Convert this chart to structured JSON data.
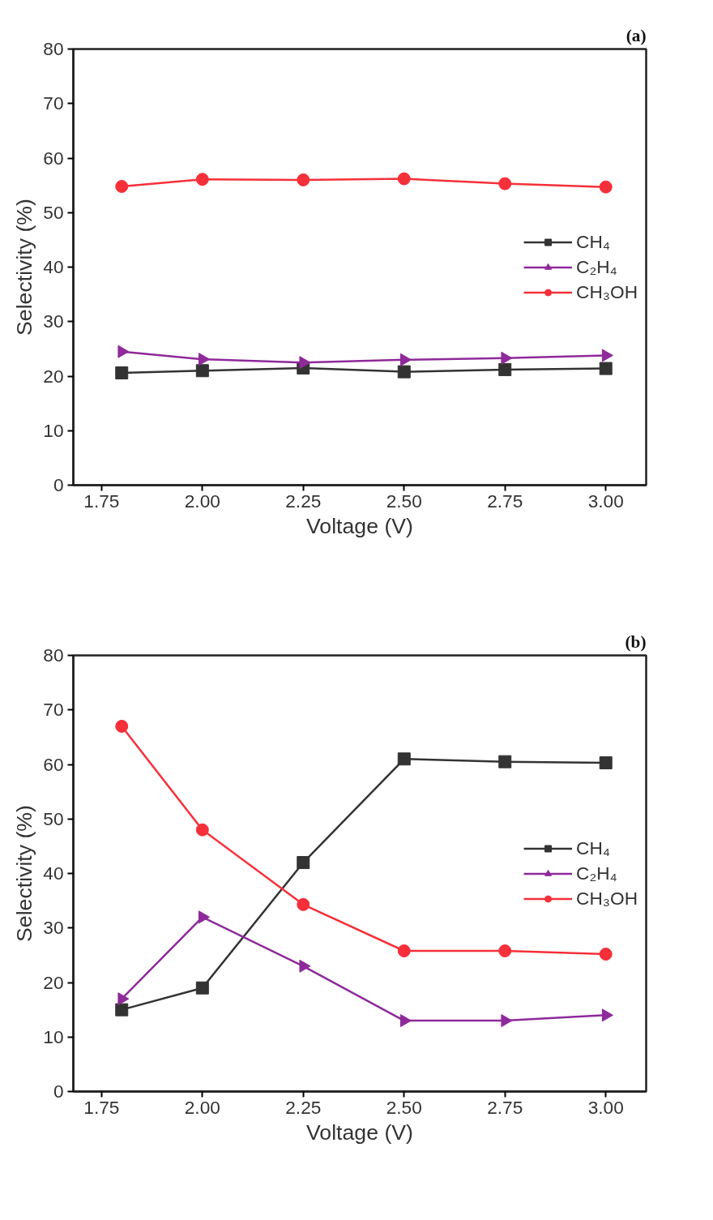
{
  "chart_data": [
    {
      "type": "line",
      "xlabel": "Voltage (V)",
      "ylabel": "Selectivity (%)",
      "annotations": [
        "(a)"
      ],
      "x": [
        1.8,
        2.0,
        2.25,
        2.5,
        2.75,
        3.0
      ],
      "xlim": [
        1.68,
        3.1
      ],
      "xticks": [
        {
          "value": 1.75,
          "label": "1.75"
        },
        {
          "value": 2.0,
          "label": "2.00"
        },
        {
          "value": 2.25,
          "label": "2.25"
        },
        {
          "value": 2.5,
          "label": "2.50"
        },
        {
          "value": 2.75,
          "label": "2.75"
        },
        {
          "value": 3.0,
          "label": "3.00"
        }
      ],
      "ylim": [
        0,
        80
      ],
      "yticks": [
        0,
        10,
        20,
        30,
        40,
        50,
        60,
        70,
        80
      ],
      "grid": false,
      "legend": "right",
      "series": [
        {
          "name": "CH₄",
          "color": "#333333",
          "marker": "square",
          "values": [
            20.6,
            21.0,
            21.5,
            20.8,
            21.2,
            21.4
          ]
        },
        {
          "name": "C₂H₄",
          "color": "#8e2a9a",
          "marker": "triangle",
          "values": [
            24.5,
            23.1,
            22.5,
            23.0,
            23.3,
            23.8
          ]
        },
        {
          "name": "CH₃OH",
          "color": "#f5303a",
          "marker": "circle",
          "values": [
            54.8,
            56.1,
            56.0,
            56.2,
            55.3,
            54.7
          ]
        }
      ]
    },
    {
      "type": "line",
      "xlabel": "Voltage (V)",
      "ylabel": "Selectivity (%)",
      "annotations": [
        "(b)"
      ],
      "x": [
        1.8,
        2.0,
        2.25,
        2.5,
        2.75,
        3.0
      ],
      "xlim": [
        1.68,
        3.1
      ],
      "xticks": [
        {
          "value": 1.75,
          "label": "1.75"
        },
        {
          "value": 2.0,
          "label": "2.00"
        },
        {
          "value": 2.25,
          "label": "2.25"
        },
        {
          "value": 2.5,
          "label": "2.50"
        },
        {
          "value": 2.75,
          "label": "2.75"
        },
        {
          "value": 3.0,
          "label": "3.00"
        }
      ],
      "ylim": [
        0,
        80
      ],
      "yticks": [
        0,
        10,
        20,
        30,
        40,
        50,
        60,
        70,
        80
      ],
      "grid": false,
      "legend": "right",
      "series": [
        {
          "name": "CH₄",
          "color": "#333333",
          "marker": "square",
          "values": [
            15,
            19,
            42,
            61,
            60.5,
            60.3
          ]
        },
        {
          "name": "C₂H₄",
          "color": "#8e2a9a",
          "marker": "triangle",
          "values": [
            17,
            32,
            23,
            13,
            13,
            14
          ]
        },
        {
          "name": "CH₃OH",
          "color": "#f5303a",
          "marker": "circle",
          "values": [
            67,
            48,
            34.3,
            25.8,
            25.8,
            25.2
          ]
        }
      ]
    }
  ]
}
